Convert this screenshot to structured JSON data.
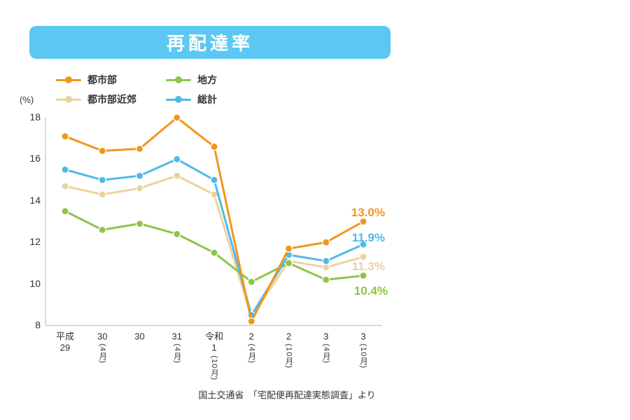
{
  "title": "再配達率",
  "y_axis_unit": "(%)",
  "source": "国土交通省　「宅配便再配達実態調査」より",
  "colors": {
    "banner": "#5BC7F2",
    "axis": "#C9D2D6",
    "text": "#333333"
  },
  "chart_data": {
    "type": "line",
    "title": "再配達率",
    "ylabel": "(%)",
    "ylim": [
      8,
      18
    ],
    "y_ticks": [
      8,
      10,
      12,
      14,
      16,
      18
    ],
    "grid": false,
    "legend_position": "top-left",
    "categories": [
      {
        "main": "平成\n29",
        "month": ""
      },
      {
        "main": "30",
        "month": "(4月)"
      },
      {
        "main": "30",
        "month": ""
      },
      {
        "main": "31",
        "month": "(4月)"
      },
      {
        "main": "令和\n1",
        "month": "(10月)"
      },
      {
        "main": "2",
        "month": "(4月)"
      },
      {
        "main": "2",
        "month": "(10月)"
      },
      {
        "main": "3",
        "month": "(4月)"
      },
      {
        "main": "3",
        "month": "(10月)"
      }
    ],
    "series": [
      {
        "name": "都市部",
        "color": "#F0961E",
        "values": [
          17.1,
          16.4,
          16.5,
          18.0,
          16.6,
          8.2,
          11.7,
          12.0,
          13.0
        ],
        "end_label": "13.0%"
      },
      {
        "name": "都市部近郊",
        "color": "#EDD2A0",
        "values": [
          14.7,
          14.3,
          14.6,
          15.2,
          14.3,
          8.4,
          11.1,
          10.8,
          11.3
        ],
        "end_label": "11.3%"
      },
      {
        "name": "地方",
        "color": "#8CC647",
        "values": [
          13.5,
          12.6,
          12.9,
          12.4,
          11.5,
          10.1,
          11.0,
          10.2,
          10.4
        ],
        "end_label": "10.4%"
      },
      {
        "name": "総計",
        "color": "#4DBBE9",
        "values": [
          15.5,
          15.0,
          15.2,
          16.0,
          15.0,
          8.5,
          11.4,
          11.1,
          11.9
        ],
        "end_label": "11.9%"
      }
    ]
  }
}
